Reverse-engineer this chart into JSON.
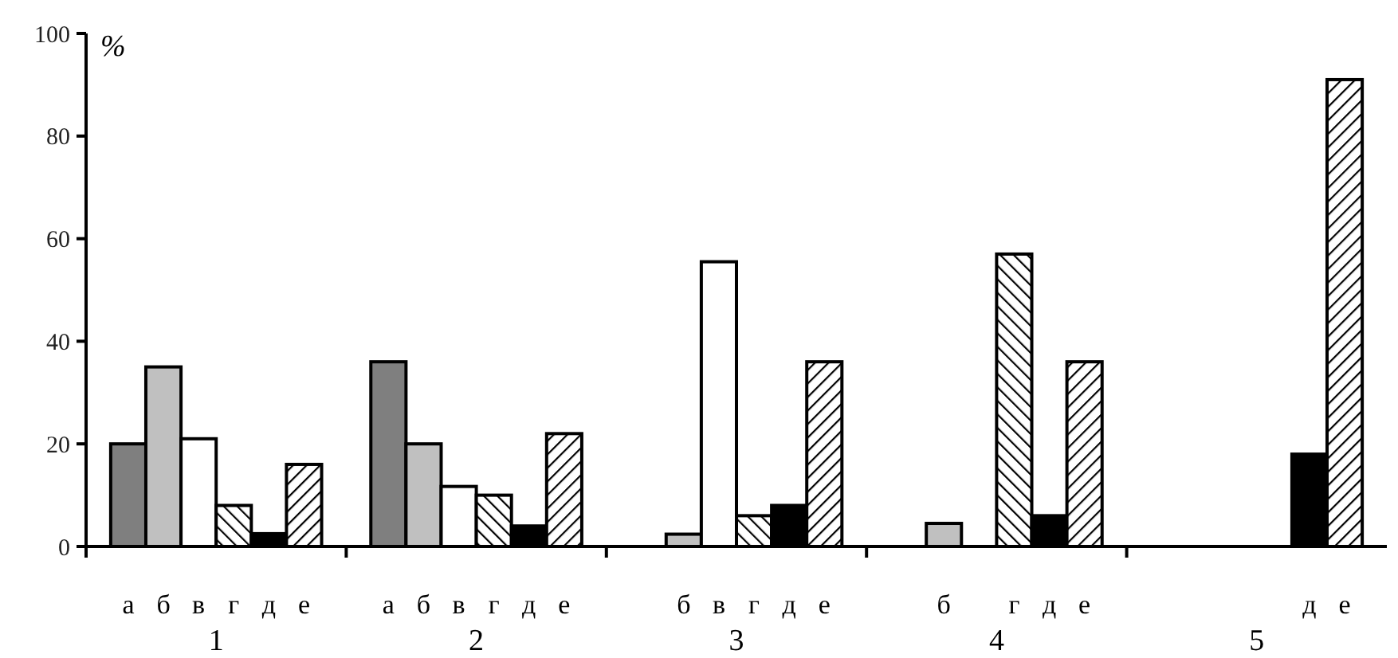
{
  "chart_data": {
    "type": "bar",
    "ylabel": "%",
    "categories": [
      "1",
      "2",
      "3",
      "4",
      "5"
    ],
    "ylim": [
      0,
      100
    ],
    "yticks": [
      0,
      20,
      40,
      60,
      80,
      100
    ],
    "grid": false,
    "series": [
      {
        "name": "а",
        "color": "#7f7f7f",
        "values": [
          20,
          36,
          null,
          null,
          null
        ]
      },
      {
        "name": "б",
        "color": "#c0c0c0",
        "values": [
          35,
          20,
          2.4,
          4.5,
          null
        ]
      },
      {
        "name": "в",
        "color": "#ffffff",
        "values": [
          21,
          11.7,
          55.5,
          null,
          null
        ]
      },
      {
        "name": "г",
        "color": "#000000",
        "values": [
          8,
          10,
          6,
          57,
          null
        ]
      },
      {
        "name": "д",
        "color": "#000000",
        "values": [
          2.5,
          4,
          8,
          6,
          18
        ]
      },
      {
        "name": "е",
        "color": "#000000",
        "values": [
          16,
          22,
          36,
          36,
          91
        ]
      }
    ]
  }
}
